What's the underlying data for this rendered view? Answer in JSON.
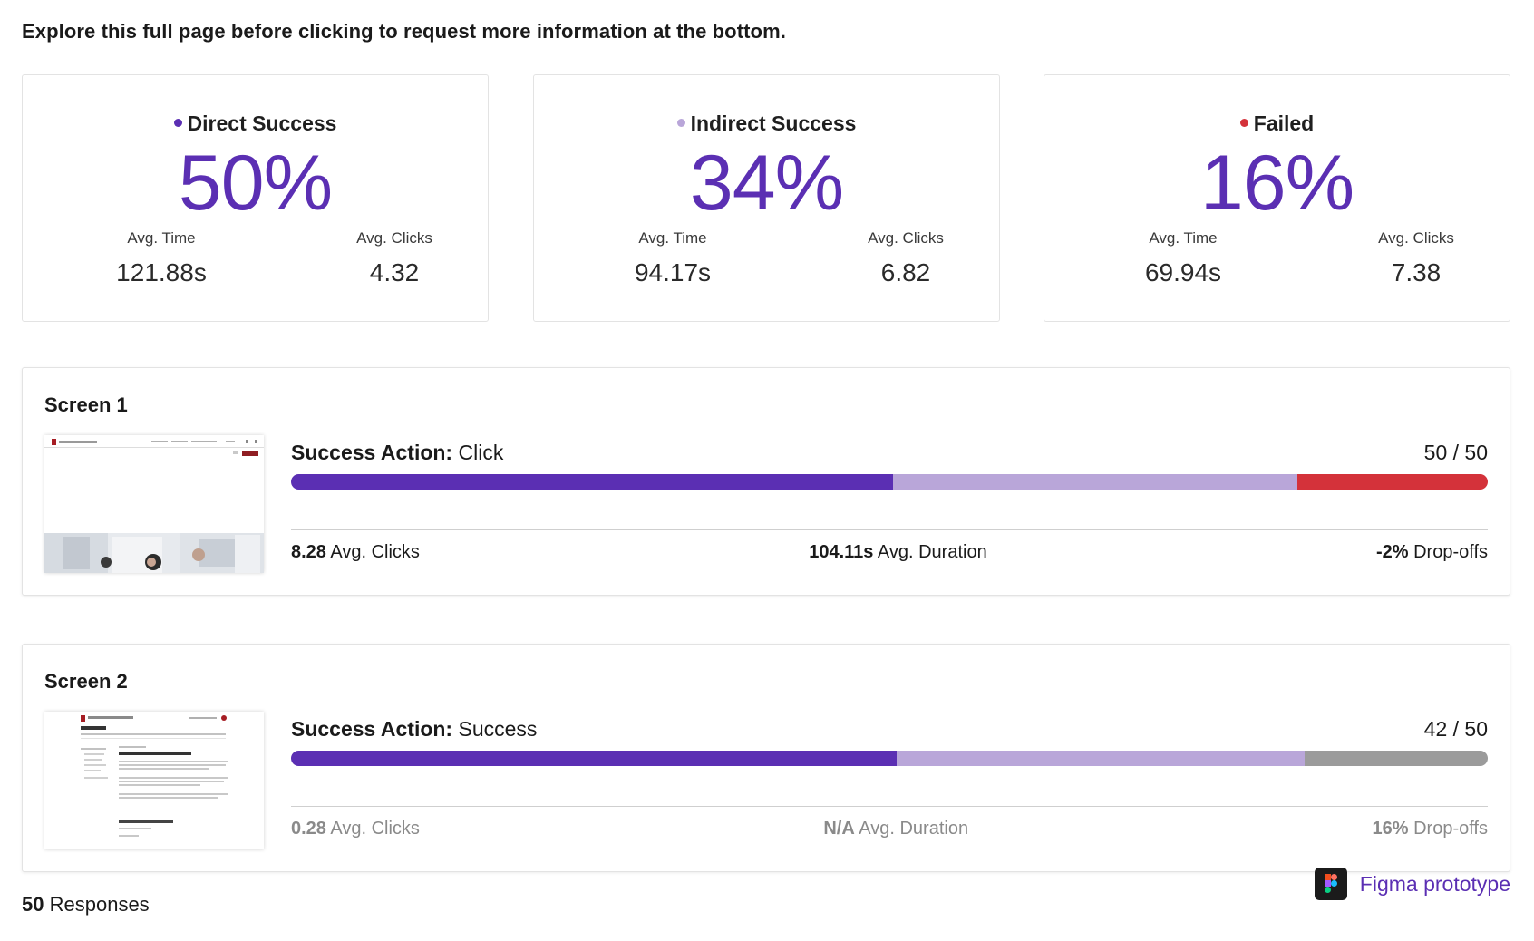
{
  "instruction": "Explore this full page before clicking to request more information at the bottom.",
  "colors": {
    "direct": "#5b2fb3",
    "indirect": "#b9a6d9",
    "failed": "#d4323a",
    "dropoff": "#9b9b9b"
  },
  "stats": [
    {
      "title": "Direct Success",
      "percent": "50%",
      "avg_time_label": "Avg. Time",
      "avg_time": "121.88s",
      "avg_clicks_label": "Avg. Clicks",
      "avg_clicks": "4.32"
    },
    {
      "title": "Indirect Success",
      "percent": "34%",
      "avg_time_label": "Avg. Time",
      "avg_time": "94.17s",
      "avg_clicks_label": "Avg. Clicks",
      "avg_clicks": "6.82"
    },
    {
      "title": "Failed",
      "percent": "16%",
      "avg_time_label": "Avg. Time",
      "avg_time": "69.94s",
      "avg_clicks_label": "Avg. Clicks",
      "avg_clicks": "7.38"
    }
  ],
  "screens": [
    {
      "title": "Screen 1",
      "action_prefix": "Success Action:",
      "action": "Click",
      "count": "50 / 50",
      "segments": [
        {
          "type": "direct",
          "fraction": 0.503
        },
        {
          "type": "indirect",
          "fraction": 0.338
        },
        {
          "type": "failed",
          "fraction": 0.159
        }
      ],
      "clicks_value": "8.28",
      "clicks_label": "Avg. Clicks",
      "duration_value": "104.11s",
      "duration_label": "Avg. Duration",
      "dropoff_value": "-2%",
      "dropoff_label": "Drop-offs"
    },
    {
      "title": "Screen 2",
      "action_prefix": "Success Action:",
      "action": "Success",
      "count": "42 / 50",
      "segments": [
        {
          "type": "direct",
          "fraction": 0.506
        },
        {
          "type": "indirect",
          "fraction": 0.341
        },
        {
          "type": "dropoff",
          "fraction": 0.153
        }
      ],
      "clicks_value": "0.28",
      "clicks_label": "Avg. Clicks",
      "duration_value": "N/A",
      "duration_label": "Avg. Duration",
      "dropoff_value": "16%",
      "dropoff_label": "Drop-offs"
    }
  ],
  "responses": {
    "count": "50",
    "label": "Responses"
  },
  "figma": {
    "label": "Figma prototype",
    "icon": "figma-logo-icon"
  }
}
